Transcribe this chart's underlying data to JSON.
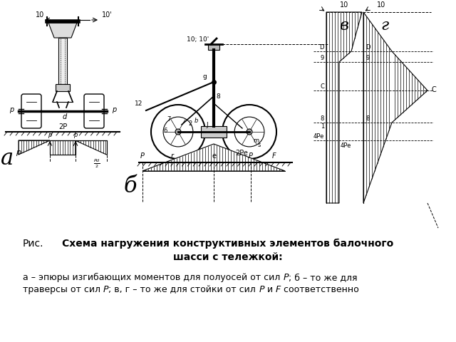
{
  "bg_color": "#ffffff",
  "fig_width": 6.4,
  "fig_height": 4.8,
  "dpi": 100,
  "caption_ric": "Рис.",
  "caption_title_bold": "Схема нагружения конструктивных элементов балочного\nшасси с тележкой:",
  "caption_line1": [
    {
      "t": "а – эпюры изгибающих моментов для полуосей от сил ",
      "i": false
    },
    {
      "t": "P",
      "i": true
    },
    {
      "t": "; б – то же для",
      "i": false
    }
  ],
  "caption_line2": [
    {
      "t": "траверсы от сил ",
      "i": false
    },
    {
      "t": "P",
      "i": true
    },
    {
      "t": "; в, г – то же для стойки от сил ",
      "i": false
    },
    {
      "t": "P",
      "i": true
    },
    {
      "t": " и ",
      "i": false
    },
    {
      "t": "F",
      "i": true
    },
    {
      "t": " соответственно",
      "i": false
    }
  ],
  "gray": "#888888",
  "light_gray": "#cccccc",
  "black": "#000000"
}
